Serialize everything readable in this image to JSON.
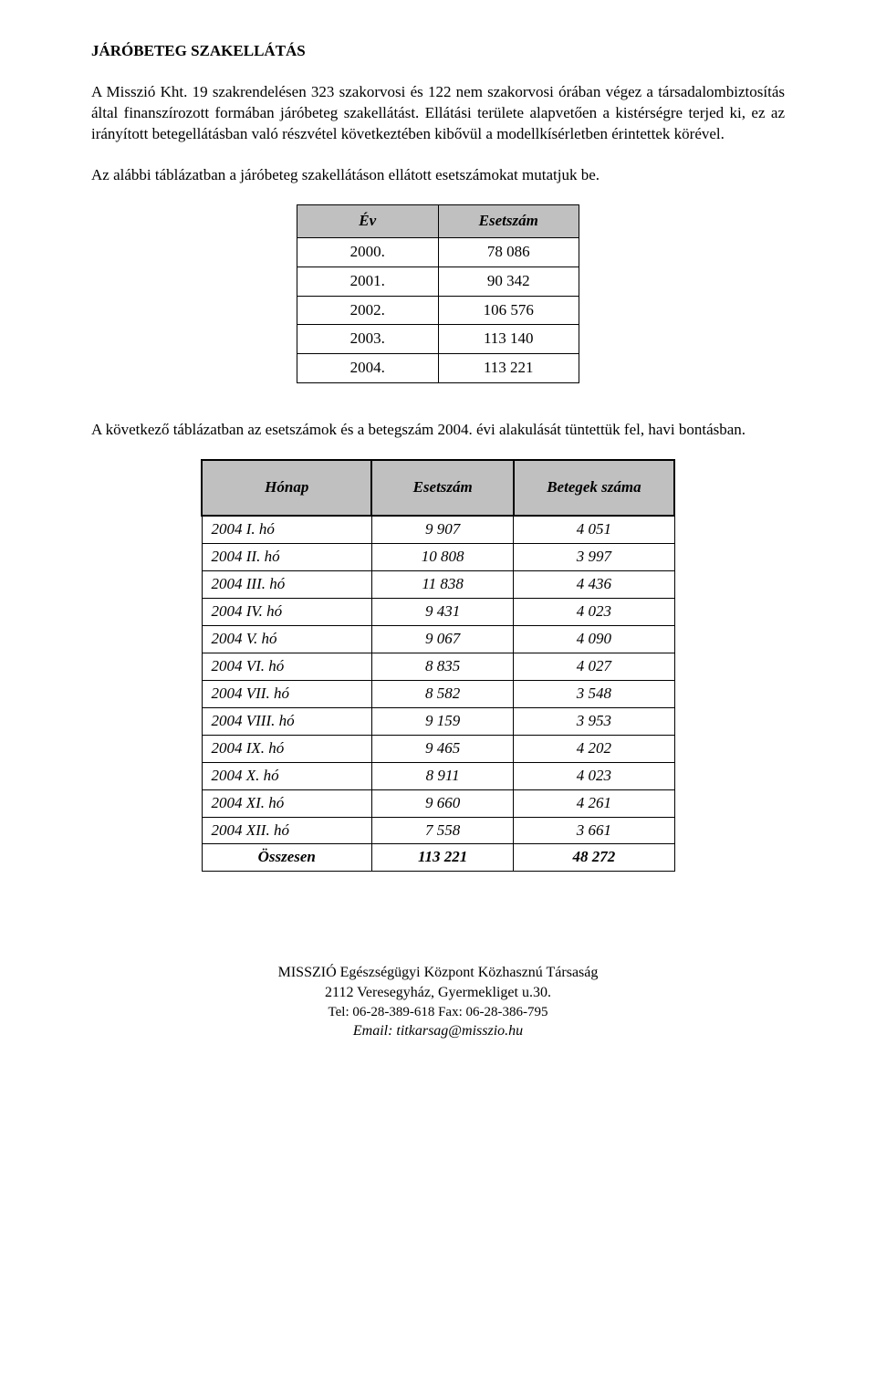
{
  "section_title": "JÁRÓBETEG SZAKELLÁTÁS",
  "para1": "A Misszió Kht. 19 szakrendelésen 323 szakorvosi és 122 nem szakorvosi órában végez a társadalombiztosítás által finanszírozott formában járóbeteg szakellátást. Ellátási területe alapvetően a kistérségre terjed ki, ez az irányított betegellátásban való részvétel következtében kibővül a modellkísérletben érintettek körével.",
  "table1_intro": "Az alábbi táblázatban a járóbeteg szakellátáson ellátott esetszámokat mutatjuk be.",
  "table1": {
    "headers": [
      "Év",
      "Esetszám"
    ],
    "rows": [
      [
        "2000.",
        "78 086"
      ],
      [
        "2001.",
        "90 342"
      ],
      [
        "2002.",
        "106 576"
      ],
      [
        "2003.",
        "113 140"
      ],
      [
        "2004.",
        "113 221"
      ]
    ]
  },
  "table2_intro": "A következő táblázatban az esetszámok és a betegszám 2004. évi alakulását tüntettük fel, havi bontásban.",
  "table2": {
    "headers": [
      "Hónap",
      "Esetszám",
      "Betegek száma"
    ],
    "rows": [
      [
        "2004 I. hó",
        "9 907",
        "4 051"
      ],
      [
        "2004 II. hó",
        "10 808",
        "3 997"
      ],
      [
        "2004 III. hó",
        "11 838",
        "4 436"
      ],
      [
        "2004 IV. hó",
        "9 431",
        "4 023"
      ],
      [
        "2004 V. hó",
        "9 067",
        "4 090"
      ],
      [
        "2004 VI. hó",
        "8 835",
        "4 027"
      ],
      [
        "2004 VII. hó",
        "8 582",
        "3 548"
      ],
      [
        "2004 VIII. hó",
        "9 159",
        "3 953"
      ],
      [
        "2004 IX. hó",
        "9 465",
        "4 202"
      ],
      [
        "2004 X. hó",
        "8 911",
        "4 023"
      ],
      [
        "2004 XI. hó",
        "9 660",
        "4 261"
      ],
      [
        "2004 XII. hó",
        "7 558",
        "3 661"
      ]
    ],
    "total": [
      "Összesen",
      "113 221",
      "48 272"
    ]
  },
  "footer": {
    "line1": "MISSZIÓ Egészségügyi Központ Közhasznú Társaság",
    "line2": "2112 Veresegyház, Gyermekliget u.30.",
    "telfax": "Tel: 06-28-389-618  Fax: 06-28-386-795",
    "email": "Email: titkarsag@misszio.hu"
  },
  "colors": {
    "header_bg": "#c0c0c0",
    "text": "#000000",
    "background": "#ffffff",
    "border": "#000000"
  }
}
